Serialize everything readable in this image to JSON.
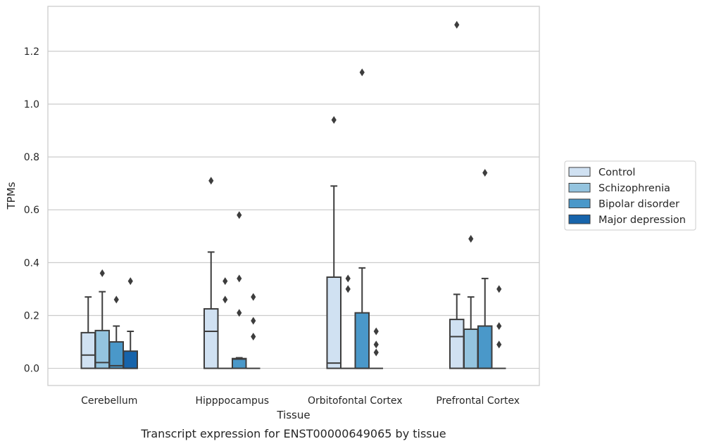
{
  "chart_data": {
    "type": "box",
    "xlabel": "Tissue",
    "ylabel": "TPMs",
    "caption": "Transcript expression for ENST00000649065 by tissue",
    "categories": [
      "Cerebellum",
      "Hipppocampus",
      "Orbitofontal Cortex",
      "Prefrontal Cortex"
    ],
    "ylim": [
      -0.065,
      1.37
    ],
    "yticks": [
      0.0,
      0.2,
      0.4,
      0.6,
      0.8,
      1.0,
      1.2
    ],
    "ytick_labels": [
      "0.0",
      "0.2",
      "0.4",
      "0.6",
      "0.8",
      "1.0",
      "1.2"
    ],
    "grid": "horizontal",
    "legend_position": "right",
    "series": [
      {
        "name": "Control",
        "color": "#d0e1f2",
        "boxes": [
          {
            "q1": 0.0,
            "median": 0.05,
            "q3": 0.135,
            "whisker_low": 0.0,
            "whisker_high": 0.27,
            "outliers": []
          },
          {
            "q1": 0.0,
            "median": 0.14,
            "q3": 0.225,
            "whisker_low": 0.0,
            "whisker_high": 0.44,
            "outliers": [
              0.71
            ]
          },
          {
            "q1": 0.0,
            "median": 0.02,
            "q3": 0.345,
            "whisker_low": 0.0,
            "whisker_high": 0.69,
            "outliers": [
              0.94
            ]
          },
          {
            "q1": 0.0,
            "median": 0.12,
            "q3": 0.185,
            "whisker_low": 0.0,
            "whisker_high": 0.28,
            "outliers": [
              1.3
            ]
          }
        ]
      },
      {
        "name": "Schizophrenia",
        "color": "#94c4df",
        "boxes": [
          {
            "q1": 0.0,
            "median": 0.022,
            "q3": 0.143,
            "whisker_low": 0.0,
            "whisker_high": 0.29,
            "outliers": [
              0.36
            ]
          },
          {
            "q1": 0.0,
            "median": 0.0,
            "q3": 0.0,
            "whisker_low": 0.0,
            "whisker_high": 0.0,
            "outliers": [
              0.33,
              0.26
            ]
          },
          {
            "q1": 0.0,
            "median": 0.0,
            "q3": 0.0,
            "whisker_low": 0.0,
            "whisker_high": 0.0,
            "outliers": [
              0.34,
              0.3
            ]
          },
          {
            "q1": 0.0,
            "median": 0.0,
            "q3": 0.148,
            "whisker_low": 0.0,
            "whisker_high": 0.27,
            "outliers": [
              0.49
            ]
          }
        ]
      },
      {
        "name": "Bipolar disorder",
        "color": "#4a98c9",
        "boxes": [
          {
            "q1": 0.0,
            "median": 0.01,
            "q3": 0.1,
            "whisker_low": 0.0,
            "whisker_high": 0.16,
            "outliers": [
              0.26
            ]
          },
          {
            "q1": 0.0,
            "median": 0.035,
            "q3": 0.037,
            "whisker_low": 0.0,
            "whisker_high": 0.04,
            "outliers": [
              0.58,
              0.34,
              0.21
            ]
          },
          {
            "q1": 0.0,
            "median": 0.0,
            "q3": 0.21,
            "whisker_low": 0.0,
            "whisker_high": 0.38,
            "outliers": [
              1.12
            ]
          },
          {
            "q1": 0.0,
            "median": 0.0,
            "q3": 0.16,
            "whisker_low": 0.0,
            "whisker_high": 0.34,
            "outliers": [
              0.74
            ]
          }
        ]
      },
      {
        "name": "Major depression",
        "color": "#1764ab",
        "boxes": [
          {
            "q1": 0.0,
            "median": 0.0,
            "q3": 0.065,
            "whisker_low": 0.0,
            "whisker_high": 0.14,
            "outliers": [
              0.33
            ]
          },
          {
            "q1": 0.0,
            "median": 0.0,
            "q3": 0.0,
            "whisker_low": 0.0,
            "whisker_high": 0.0,
            "outliers": [
              0.27,
              0.18,
              0.12
            ]
          },
          {
            "q1": 0.0,
            "median": 0.0,
            "q3": 0.0,
            "whisker_low": 0.0,
            "whisker_high": 0.0,
            "outliers": [
              0.14,
              0.09,
              0.06
            ]
          },
          {
            "q1": 0.0,
            "median": 0.0,
            "q3": 0.0,
            "whisker_low": 0.0,
            "whisker_high": 0.0,
            "outliers": [
              0.3,
              0.16,
              0.09
            ]
          }
        ]
      }
    ]
  }
}
